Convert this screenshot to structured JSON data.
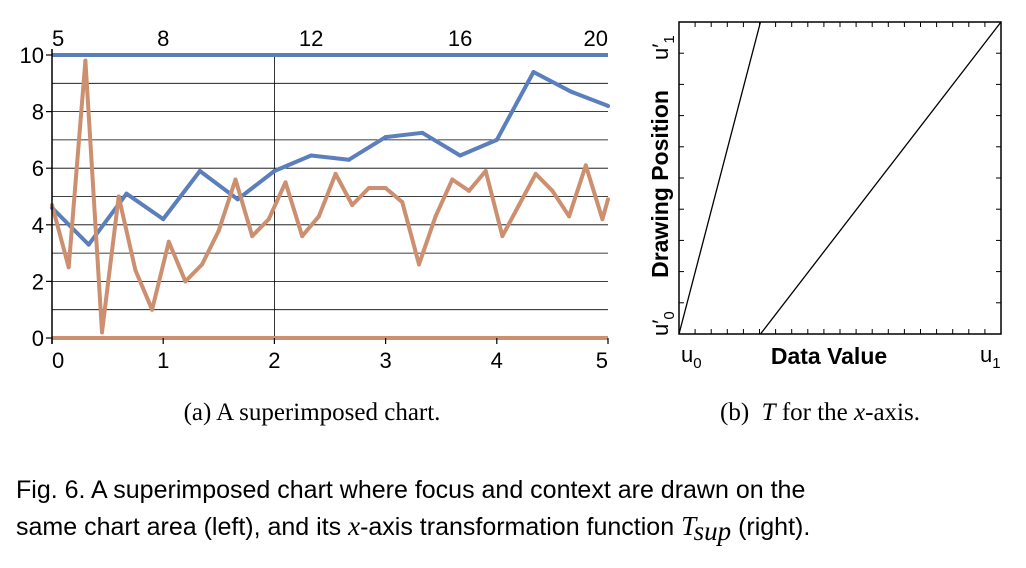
{
  "chart_data": [
    {
      "type": "line",
      "title": "",
      "xlabel": "",
      "ylabel": "",
      "xlim": [
        0,
        5
      ],
      "ylim": [
        0,
        10
      ],
      "x_ticks": [
        "0",
        "1",
        "2",
        "3",
        "4",
        "5"
      ],
      "y_ticks": [
        "0",
        "2",
        "4",
        "6",
        "8",
        "10"
      ],
      "top_x_ticks": [
        {
          "label": "5",
          "x": 0
        },
        {
          "label": "8",
          "x": 1
        },
        {
          "label": "12",
          "x": 2.33
        },
        {
          "label": "16",
          "x": 3.67
        },
        {
          "label": "20",
          "x": 5
        }
      ],
      "grid": true,
      "series": [
        {
          "color": "#5b7fbc",
          "x": [
            0,
            0.33,
            0.67,
            1.0,
            1.33,
            1.67,
            2.0,
            2.33,
            2.67,
            3.0,
            3.33,
            3.67,
            4.0,
            4.33,
            4.67,
            5.0
          ],
          "y": [
            4.6,
            3.3,
            5.1,
            4.2,
            5.9,
            4.9,
            5.9,
            6.45,
            6.3,
            7.1,
            7.25,
            6.45,
            7.0,
            9.4,
            8.7,
            8.2
          ]
        },
        {
          "color": "#cc8f6f",
          "x": [
            0,
            0.15,
            0.3,
            0.45,
            0.6,
            0.75,
            0.9,
            1.05,
            1.2,
            1.35,
            1.5,
            1.65,
            1.8,
            1.95,
            2.1,
            2.25,
            2.4,
            2.55,
            2.7,
            2.85,
            3.0,
            3.15,
            3.3,
            3.45,
            3.6,
            3.75,
            3.9,
            4.05,
            4.2,
            4.35,
            4.5,
            4.65,
            4.8,
            4.95,
            5.0
          ],
          "y": [
            4.7,
            2.5,
            9.8,
            0.2,
            5.0,
            2.4,
            1.0,
            3.4,
            2.0,
            2.6,
            3.8,
            5.6,
            3.6,
            4.2,
            5.5,
            3.6,
            4.3,
            5.8,
            4.7,
            5.3,
            5.3,
            4.8,
            2.6,
            4.3,
            5.6,
            5.2,
            5.9,
            3.6,
            4.7,
            5.8,
            5.2,
            4.3,
            6.1,
            4.2,
            4.9
          ]
        }
      ],
      "reference_lines": [
        {
          "y": 10,
          "color": "#5b7fbc"
        },
        {
          "y": 0,
          "color": "#cc8f6f"
        }
      ]
    },
    {
      "type": "line",
      "title": "",
      "xlabel": "Data Value",
      "ylabel": "Drawing Position",
      "x_ticks": [
        "u",
        "u"
      ],
      "x_tick_subscripts": [
        "0",
        "1"
      ],
      "y_ticks": [
        "u′",
        "u′"
      ],
      "y_tick_subscripts": [
        "0",
        "1"
      ],
      "xlim": [
        0,
        1
      ],
      "ylim": [
        0,
        1
      ],
      "series": [
        {
          "x": [
            0,
            0.253
          ],
          "y": [
            0,
            1
          ],
          "color": "#000000"
        },
        {
          "x": [
            0.253,
            1
          ],
          "y": [
            0,
            1
          ],
          "color": "#000000"
        }
      ]
    }
  ],
  "subcaptions": {
    "a": "(a)  A superimposed chart.",
    "b_prefix": "(b)  ",
    "b_italic": "T",
    "b_middle": " for the ",
    "b_italic2": "x",
    "b_suffix": "-axis."
  },
  "caption": {
    "line1": "Fig. 6. A superimposed chart where focus and context are drawn on the",
    "line2_a": "same chart area (left), and its ",
    "line2_x": "x",
    "line2_b": "-axis transformation function ",
    "line2_T": "T",
    "line2_sub": "sup",
    "line2_c": " (right)."
  }
}
